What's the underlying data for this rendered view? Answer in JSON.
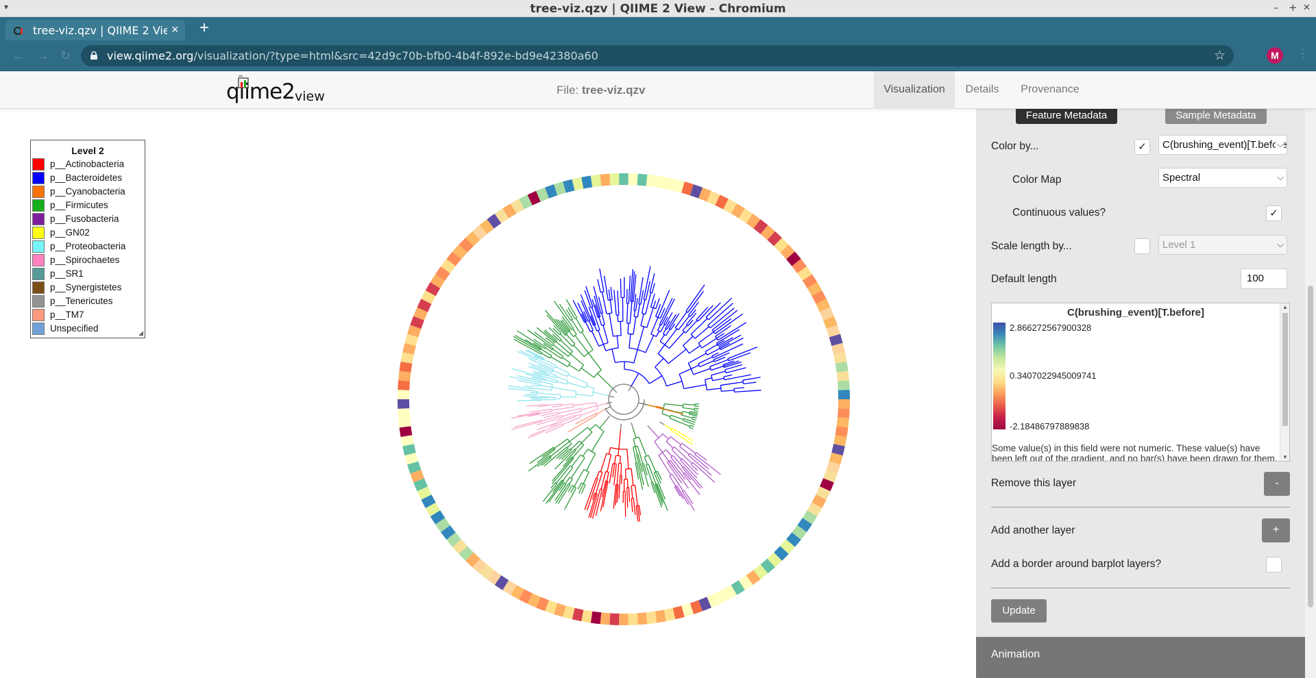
{
  "window": {
    "title": "tree-viz.qzv | QIIME 2 View - Chromium",
    "controls": {
      "minimize": "–",
      "maximize": "+",
      "close": "✕"
    }
  },
  "browser": {
    "tab_title": "tree-viz.qzv | QIIME 2 View",
    "url_host": "view.qiime2.org",
    "url_rest": "/visualization/?type=html&src=42d9c70b-bfb0-4b4f-892e-bd9e42380a60",
    "profile_initial": "M"
  },
  "header": {
    "logo_text": "qiime2",
    "logo_suffix": "view",
    "file_label": "File:",
    "file_name": "tree-viz.qzv",
    "tabs": [
      "Visualization",
      "Details",
      "Provenance"
    ],
    "active_tab": "Visualization"
  },
  "legend": {
    "title": "Level 2",
    "items": [
      {
        "label": "p__Actinobacteria",
        "color": "#ff0000"
      },
      {
        "label": "p__Bacteroidetes",
        "color": "#0000ff"
      },
      {
        "label": "p__Cyanobacteria",
        "color": "#f97306"
      },
      {
        "label": "p__Firmicutes",
        "color": "#15b01a"
      },
      {
        "label": "p__Fusobacteria",
        "color": "#7e1e9c"
      },
      {
        "label": "p__GN02",
        "color": "#ffff14"
      },
      {
        "label": "p__Proteobacteria",
        "color": "#75f5f5"
      },
      {
        "label": "p__Spirochaetes",
        "color": "#ff81c0"
      },
      {
        "label": "p__SR1",
        "color": "#569a9a"
      },
      {
        "label": "p__Synergistetes",
        "color": "#7a4f16"
      },
      {
        "label": "p__Tenericutes",
        "color": "#929591"
      },
      {
        "label": "p__TM7",
        "color": "#ff9a80"
      },
      {
        "label": "Unspecified",
        "color": "#6fa0d8"
      }
    ]
  },
  "panel": {
    "top_buttons": [
      "Feature Metadata",
      "Sample Metadata"
    ],
    "color_by_label": "Color by...",
    "color_by_value": "C(brushing_event)[T.before]",
    "color_map_label": "Color Map",
    "color_map_value": "Spectral",
    "continuous_label": "Continuous values?",
    "scale_label": "Scale length by...",
    "scale_value": "Level 1",
    "default_length_label": "Default length",
    "default_length_value": "100",
    "colorbar": {
      "title": "C(brushing_event)[T.before]",
      "max": "2.866272567900328",
      "mid": "0.3407022945009741",
      "min": "-2.18486797889838",
      "note": "Some value(s) in this field were not numeric. These value(s) have been left out of the gradient, and no bar(s) have been drawn for them."
    },
    "remove_layer_label": "Remove this layer",
    "remove_btn": "-",
    "add_layer_label": "Add another layer",
    "add_btn": "+",
    "border_label": "Add a border around barplot layers?",
    "update_btn": "Update",
    "animation_label": "Animation"
  }
}
